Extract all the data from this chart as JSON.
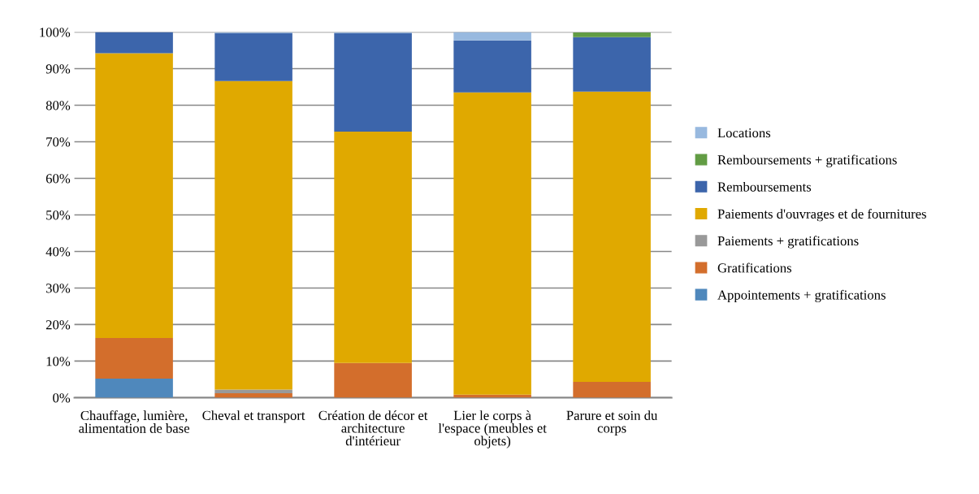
{
  "chart_data": {
    "type": "bar",
    "stacked": true,
    "categories": [
      "Chauffage, lumière, alimentation de base",
      "Cheval et transport",
      "Création de décor et architecture d'intérieur",
      "Lier le corps à l'espace (meubles et objets)",
      "Parure et soin du corps"
    ],
    "series": [
      {
        "name": "Appointements + gratifications",
        "color": "#4f88bc",
        "values": [
          5.2,
          0,
          0,
          0,
          0
        ]
      },
      {
        "name": "Gratifications",
        "color": "#d36e2c",
        "values": [
          11.1,
          1.2,
          9.5,
          0.8,
          4.3
        ]
      },
      {
        "name": "Paiements + gratifications",
        "color": "#999999",
        "values": [
          0,
          1.0,
          0,
          0,
          0
        ]
      },
      {
        "name": "Paiements d'ouvrages et de fournitures",
        "color": "#e0a900",
        "values": [
          77.9,
          84.4,
          63.3,
          82.7,
          79.4
        ]
      },
      {
        "name": "Remboursements",
        "color": "#3c65ab",
        "values": [
          5.8,
          13.1,
          26.9,
          14.2,
          14.9
        ]
      },
      {
        "name": "Remboursements + gratifications",
        "color": "#629c44",
        "values": [
          0,
          0,
          0,
          0,
          1.3
        ]
      },
      {
        "name": "Locations",
        "color": "#98b9df",
        "values": [
          0,
          0.3,
          0.3,
          2.3,
          null
        ]
      }
    ],
    "ylim": [
      0,
      100
    ],
    "yticks": [
      {
        "value": 0,
        "label": "0%"
      },
      {
        "value": 10,
        "label": "10%"
      },
      {
        "value": 20,
        "label": "20%"
      },
      {
        "value": 30,
        "label": "30%"
      },
      {
        "value": 40,
        "label": "40%"
      },
      {
        "value": 50,
        "label": "50%"
      },
      {
        "value": 60,
        "label": "60%"
      },
      {
        "value": 70,
        "label": "70%"
      },
      {
        "value": 80,
        "label": "80%"
      },
      {
        "value": 90,
        "label": "90%"
      },
      {
        "value": 100,
        "label": "100%"
      }
    ],
    "grid": "y",
    "legend": "right"
  }
}
